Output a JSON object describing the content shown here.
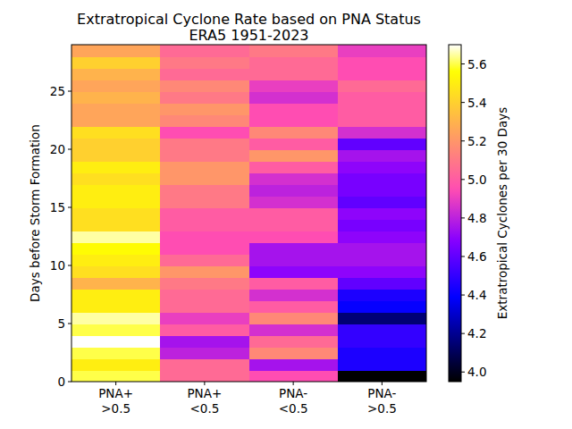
{
  "chart_data": {
    "type": "heatmap",
    "title": "Extratropical Cyclone Rate based on PNA Status",
    "subtitle": "ERA5 1951-2023",
    "y_label": "Days before Storm Formation",
    "categories": [
      "PNA+\n>0.5",
      "PNA+\n<0.5",
      "PNA-\n<0.5",
      "PNA-\n>0.5"
    ],
    "y": [
      0,
      1,
      2,
      3,
      4,
      5,
      6,
      7,
      8,
      9,
      10,
      11,
      12,
      13,
      14,
      15,
      16,
      17,
      18,
      19,
      20,
      21,
      22,
      23,
      24,
      25,
      26,
      27,
      28
    ],
    "ylim": [
      0,
      29
    ],
    "yticks": [
      0,
      5,
      10,
      15,
      20,
      25
    ],
    "values": [
      [
        5.6,
        5.5,
        5.6,
        5.7,
        5.6,
        5.65,
        5.5,
        5.5,
        5.3,
        5.45,
        5.5,
        5.55,
        5.65,
        5.45,
        5.45,
        5.5,
        5.5,
        5.45,
        5.5,
        5.4,
        5.4,
        5.45,
        5.25,
        5.25,
        5.3,
        5.25,
        5.3,
        5.4,
        5.25
      ],
      [
        5.05,
        5.05,
        4.8,
        4.75,
        5.0,
        4.9,
        5.05,
        5.05,
        5.1,
        5.2,
        5.05,
        4.95,
        4.95,
        5.0,
        5.0,
        5.1,
        5.1,
        5.2,
        5.2,
        5.1,
        5.1,
        4.95,
        5.15,
        5.2,
        5.1,
        5.15,
        5.05,
        5.1,
        5.05
      ],
      [
        4.95,
        4.75,
        5.15,
        5.05,
        4.85,
        5.15,
        5.0,
        4.85,
        5.0,
        4.7,
        4.75,
        4.75,
        4.95,
        5.0,
        5.0,
        4.85,
        4.8,
        4.85,
        5.0,
        5.2,
        5.0,
        5.15,
        4.95,
        4.95,
        4.85,
        4.9,
        5.05,
        5.05,
        5.1
      ],
      [
        3.95,
        4.45,
        4.45,
        4.5,
        4.5,
        4.15,
        4.4,
        4.45,
        4.6,
        4.7,
        4.75,
        4.75,
        4.7,
        4.65,
        4.7,
        4.6,
        4.65,
        4.65,
        4.7,
        4.75,
        4.6,
        4.85,
        5.0,
        5.0,
        5.0,
        5.05,
        4.95,
        4.95,
        4.9
      ]
    ],
    "colorbar": {
      "label": "Extratropical Cyclones per 30 Days",
      "range": [
        3.95,
        5.7
      ],
      "ticks": [
        {
          "value": 4,
          "label": "4.0"
        },
        4.2,
        4.4,
        4.6,
        4.8,
        {
          "value": 5,
          "label": "5.0"
        },
        5.2,
        5.4,
        5.6
      ]
    }
  }
}
